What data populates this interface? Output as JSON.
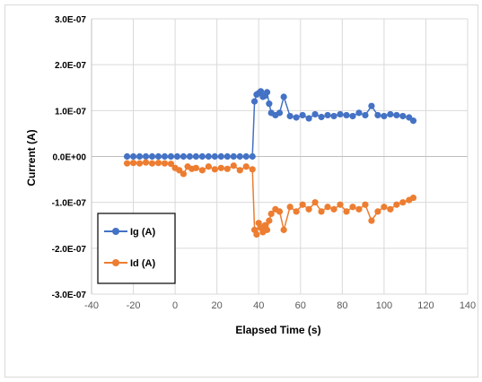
{
  "chart_data": {
    "type": "scatter",
    "title": "",
    "xlabel": "Elapsed Time (s)",
    "ylabel": "Current (A)",
    "xlim": [
      -40,
      140
    ],
    "ylim": [
      -3e-07,
      3e-07
    ],
    "x_ticks": [
      -40,
      -20,
      0,
      20,
      40,
      60,
      80,
      100,
      120,
      140
    ],
    "y_ticks": [
      3e-07,
      2e-07,
      1e-07,
      0,
      -1e-07,
      -2e-07,
      -3e-07
    ],
    "x_tick_labels": [
      "-40",
      "-20",
      "0",
      "20",
      "40",
      "60",
      "80",
      "100",
      "120",
      "140"
    ],
    "y_tick_labels": [
      "3.0E-07",
      "2.0E-07",
      "1.0E-07",
      "0.0E+00",
      "-1.0E-07",
      "-2.0E-07",
      "-3.0E-07"
    ],
    "grid": "horizontal and vertical",
    "legend_position": "bottom-left",
    "series": [
      {
        "name": "Ig (A)",
        "color": "#4472C4",
        "x": [
          -23,
          -20,
          -17,
          -14,
          -11,
          -8,
          -5,
          -2,
          1,
          4,
          7,
          10,
          13,
          16,
          19,
          22,
          25,
          28,
          31,
          34,
          37,
          38,
          39,
          40,
          41,
          42,
          43,
          44,
          45,
          46,
          48,
          50,
          52,
          55,
          58,
          61,
          64,
          67,
          70,
          73,
          76,
          79,
          82,
          85,
          88,
          91,
          94,
          97,
          100,
          103,
          106,
          109,
          112,
          114
        ],
        "y": [
          0,
          0,
          0,
          0,
          0,
          0,
          0,
          0,
          0,
          0,
          0,
          0,
          0,
          0,
          0,
          0,
          0,
          0,
          0,
          0,
          0,
          1.2e-07,
          1.35e-07,
          1.38e-07,
          1.42e-07,
          1.3e-07,
          1.32e-07,
          1.4e-07,
          1.15e-07,
          9.5e-08,
          9e-08,
          9.5e-08,
          1.3e-07,
          8.8e-08,
          8.5e-08,
          9e-08,
          8.3e-08,
          9.2e-08,
          8.6e-08,
          9e-08,
          8.8e-08,
          9.2e-08,
          9e-08,
          8.8e-08,
          9.5e-08,
          9e-08,
          1.1e-07,
          9e-08,
          8.8e-08,
          9.2e-08,
          9e-08,
          8.8e-08,
          8.5e-08,
          7.8e-08
        ]
      },
      {
        "name": "Id (A)",
        "color": "#ED7D31",
        "x": [
          -23,
          -20,
          -17,
          -14,
          -11,
          -8,
          -5,
          -2,
          0,
          2,
          4,
          6,
          8,
          10,
          13,
          16,
          19,
          22,
          25,
          28,
          31,
          34,
          37,
          38,
          39,
          40,
          41,
          42,
          43,
          44,
          45,
          46,
          48,
          50,
          52,
          55,
          58,
          61,
          64,
          67,
          70,
          73,
          76,
          79,
          82,
          85,
          88,
          91,
          94,
          97,
          100,
          103,
          106,
          109,
          112,
          114
        ],
        "y": [
          -1.5e-08,
          -1.4e-08,
          -1.5e-08,
          -1.3e-08,
          -1.5e-08,
          -1.4e-08,
          -1.5e-08,
          -1.6e-08,
          -2.5e-08,
          -3e-08,
          -3.8e-08,
          -2.2e-08,
          -2.7e-08,
          -2.5e-08,
          -3e-08,
          -2.2e-08,
          -2.8e-08,
          -2.5e-08,
          -2.7e-08,
          -2e-08,
          -3e-08,
          -2.2e-08,
          -2.8e-08,
          -1.6e-07,
          -1.7e-07,
          -1.45e-07,
          -1.55e-07,
          -1.65e-07,
          -1.5e-07,
          -1.6e-07,
          -1.4e-07,
          -1.25e-07,
          -1.15e-07,
          -1.2e-07,
          -1.6e-07,
          -1.1e-07,
          -1.2e-07,
          -1.05e-07,
          -1.15e-07,
          -1e-07,
          -1.2e-07,
          -1.1e-07,
          -1.15e-07,
          -1.05e-07,
          -1.2e-07,
          -1.1e-07,
          -1.15e-07,
          -1.05e-07,
          -1.4e-07,
          -1.2e-07,
          -1.1e-07,
          -1.15e-07,
          -1.05e-07,
          -1e-07,
          -9.5e-08,
          -9e-08
        ]
      }
    ]
  }
}
